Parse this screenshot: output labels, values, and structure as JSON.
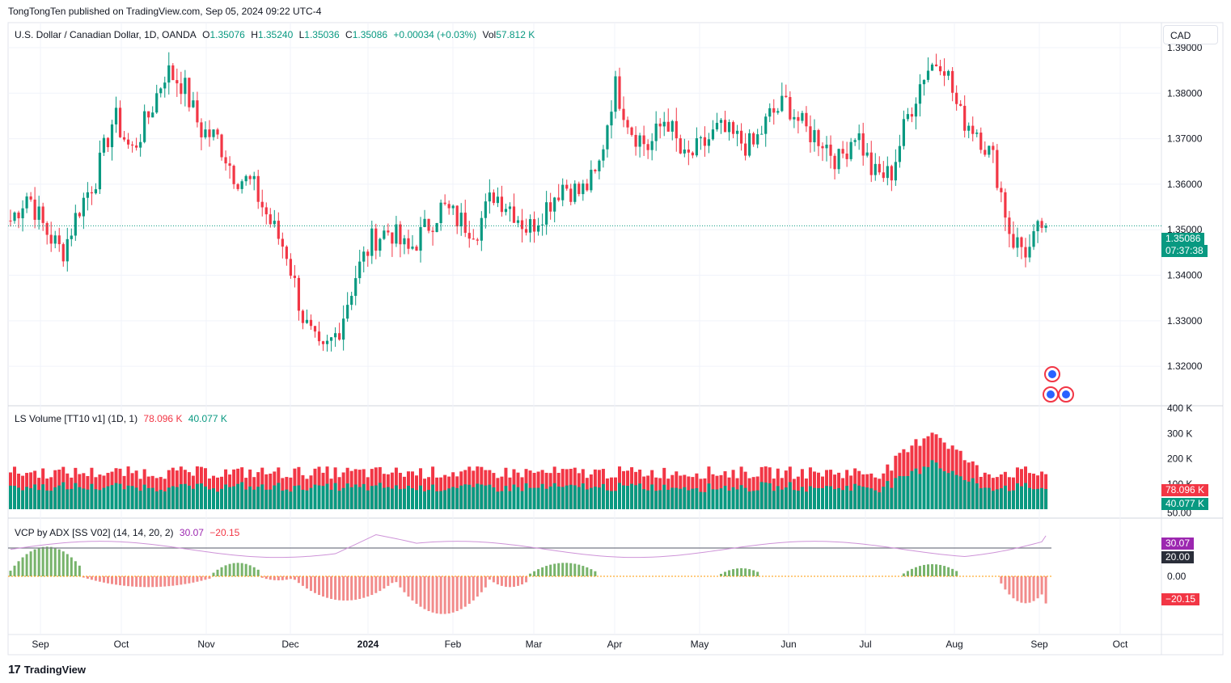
{
  "publisher_line": "TongTongTen published on TradingView.com, Sep 05, 2024 09:22 UTC-4",
  "brand": "TradingView",
  "currency_button": "CAD",
  "colors": {
    "up": "#089981",
    "down": "#f23645",
    "vcp_pos": "#77b36b",
    "vcp_neg": "#f28b8b",
    "adx": "#9c27b0"
  },
  "main": {
    "symbol": "U.S. Dollar / Canadian Dollar, 1D, OANDA",
    "o_label": "O",
    "o": "1.35076",
    "h_label": "H",
    "h": "1.35240",
    "l_label": "L",
    "l": "1.35036",
    "c_label": "C",
    "c": "1.35086",
    "change": "+0.00034 (+0.03%)",
    "vol_label": "Vol",
    "vol": "57.812 K",
    "price_tag": "1.35086",
    "countdown": "07:37:38"
  },
  "volume_pane": {
    "title": "LS Volume [TT10 v1] (1D, 1)",
    "v1": "78.096 K",
    "v2": "40.077 K",
    "tag1": "78.096 K",
    "tag2": "40.077 K"
  },
  "vcp_pane": {
    "title": "VCP by ADX [SS V02] (14, 14, 20, 2)",
    "v1": "30.07",
    "v2": "−20.15",
    "tag1": "30.07",
    "tag2": "20.00",
    "tag3": "−20.15"
  },
  "chart_data": [
    {
      "type": "candlestick",
      "title": "U.S. Dollar / Canadian Dollar, 1D, OANDA",
      "x_ticks": [
        "Sep",
        "Oct",
        "Nov",
        "Dec",
        "2024",
        "Feb",
        "Mar",
        "Apr",
        "May",
        "Jun",
        "Jul",
        "Aug",
        "Sep",
        "Oct"
      ],
      "y_ticks": [
        "1.39000",
        "1.38000",
        "1.37000",
        "1.36000",
        "1.35000",
        "1.34000",
        "1.33000",
        "1.32000"
      ],
      "ylim": [
        1.3115,
        1.3955
      ],
      "last_close": 1.35086,
      "closes_by_week": [
        1.352,
        1.358,
        1.35,
        1.345,
        1.355,
        1.362,
        1.375,
        1.367,
        1.375,
        1.385,
        1.382,
        1.372,
        1.37,
        1.362,
        1.36,
        1.352,
        1.345,
        1.33,
        1.322,
        1.328,
        1.34,
        1.348,
        1.35,
        1.345,
        1.35,
        1.355,
        1.352,
        1.35,
        1.358,
        1.355,
        1.35,
        1.355,
        1.36,
        1.358,
        1.362,
        1.382,
        1.372,
        1.368,
        1.375,
        1.365,
        1.368,
        1.372,
        1.37,
        1.368,
        1.375,
        1.378,
        1.372,
        1.37,
        1.365,
        1.372,
        1.362,
        1.362,
        1.375,
        1.385,
        1.388,
        1.375,
        1.372,
        1.365,
        1.348,
        1.345,
        1.353
      ]
    },
    {
      "type": "bar",
      "title": "LS Volume [TT10 v1] (1D, 1)",
      "y_ticks": [
        "400 K",
        "300 K",
        "200 K",
        "100 K",
        "50.00"
      ],
      "ylim": [
        0,
        400000
      ],
      "series": [
        {
          "name": "78.096 K",
          "last": 78096
        },
        {
          "name": "40.077 K",
          "last": 40077
        }
      ]
    },
    {
      "type": "bar",
      "title": "VCP by ADX [SS V02] (14, 14, 20, 2)",
      "y_ticks": [
        "0.00"
      ],
      "ylim": [
        -33,
        33
      ],
      "adx_last": 30.07,
      "threshold": 20.0,
      "vcp_last": -20.15
    }
  ]
}
